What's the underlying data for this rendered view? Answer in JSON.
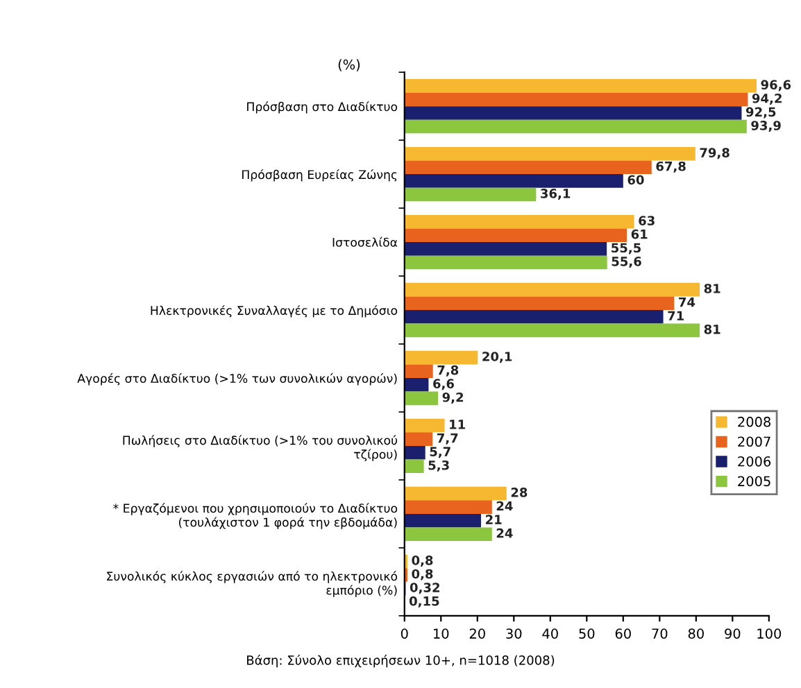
{
  "chart_data": {
    "type": "bar",
    "orientation": "horizontal",
    "title": "(%)",
    "annotations": [
      "Βάση: Σύνολο επιχειρήσεων 10+, n=1018 (2008)"
    ],
    "categories": [
      "Πρόσβαση στο Διαδίκτυο",
      "Πρόσβαση Ευρείας Ζώνης",
      "Ιστοσελίδα",
      "Ηλεκτρονικές Συναλλαγές με το Δημόσιο",
      "Αγορές στο Διαδίκτυο (>1% των συνολικών αγορών)",
      "Πωλήσεις στο Διαδίκτυο (>1% του συνολικού\nτζίρου)",
      "* Εργαζόμενοι που χρησιμοποιούν το Διαδίκτυο\n(τουλάχιστον 1 φορά την εβδομάδα)",
      "Συνολικός κύκλος εργασιών από το ηλεκτρονικό\nεμπόριο (%)"
    ],
    "series": [
      {
        "name": "2008",
        "color": "#f5b830",
        "values": [
          96.6,
          79.8,
          63,
          81,
          20.1,
          11,
          28,
          0.8
        ],
        "value_labels": [
          "96,6",
          "79,8",
          "63",
          "81",
          "20,1",
          "11",
          "28",
          "0,8"
        ]
      },
      {
        "name": "2007",
        "color": "#e8641e",
        "values": [
          94.2,
          67.8,
          61,
          74,
          7.8,
          7.7,
          24,
          0.8
        ],
        "value_labels": [
          "94,2",
          "67,8",
          "61",
          "74",
          "7,8",
          "7,7",
          "24",
          "0,8"
        ]
      },
      {
        "name": "2006",
        "color": "#1a1f6e",
        "values": [
          92.5,
          60,
          55.5,
          71,
          6.6,
          5.7,
          21,
          0.32
        ],
        "value_labels": [
          "92,5",
          "60",
          "55,5",
          "71",
          "6,6",
          "5,7",
          "21",
          "0,32"
        ]
      },
      {
        "name": "2005",
        "color": "#8cc63e",
        "values": [
          93.9,
          36.1,
          55.6,
          81,
          9.2,
          5.3,
          24,
          0.15
        ],
        "value_labels": [
          "93,9",
          "36,1",
          "55,6",
          "81",
          "9,2",
          "5,3",
          "24",
          "0,15"
        ]
      }
    ],
    "xlim": [
      0,
      100
    ],
    "xticks": [
      0,
      10,
      20,
      30,
      40,
      50,
      60,
      70,
      80,
      90,
      100
    ],
    "grid": false,
    "legend": "right"
  }
}
